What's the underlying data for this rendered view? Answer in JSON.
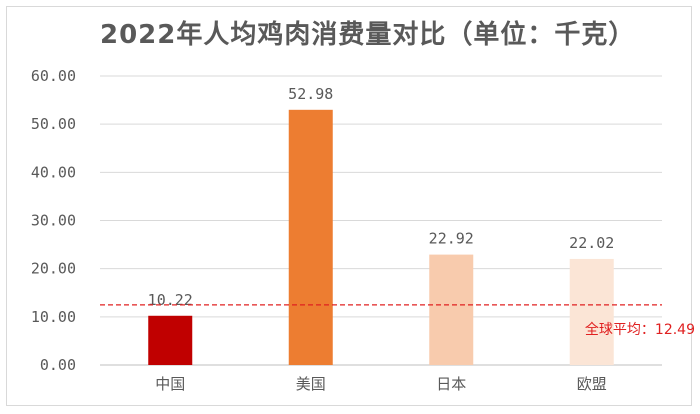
{
  "chart_data": {
    "type": "bar",
    "title": "2022年人均鸡肉消费量对比（单位：千克）",
    "categories": [
      "中国",
      "美国",
      "日本",
      "欧盟"
    ],
    "values": [
      10.22,
      52.98,
      22.92,
      22.02
    ],
    "value_labels": [
      "10.22",
      "52.98",
      "22.92",
      "22.02"
    ],
    "bar_colors": [
      "#c00000",
      "#ed7d31",
      "#f8cbad",
      "#fbe5d6"
    ],
    "ylim": [
      0,
      60
    ],
    "yticks": [
      "0.00",
      "10.00",
      "20.00",
      "30.00",
      "40.00",
      "50.00",
      "60.00"
    ],
    "grid": true,
    "reference_line": {
      "value": 12.49,
      "label": "全球平均：12.49",
      "color": "#e02020",
      "style": "dashed"
    }
  }
}
